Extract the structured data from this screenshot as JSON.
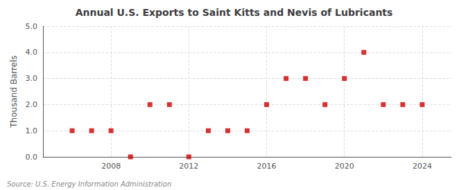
{
  "chart_data": {
    "type": "scatter",
    "title": "Annual U.S. Exports to Saint Kitts and Nevis of Lubricants",
    "ylabel": "Thousand Barrels",
    "annotation": "Source: U.S. Energy Information Administration",
    "x": [
      2006,
      2007,
      2008,
      2009,
      2010,
      2011,
      2012,
      2013,
      2014,
      2015,
      2016,
      2017,
      2018,
      2019,
      2020,
      2021,
      2022,
      2023,
      2024
    ],
    "values": [
      1,
      1,
      1,
      0,
      2,
      2,
      0,
      1,
      1,
      1,
      2,
      3,
      3,
      2,
      3,
      4,
      2,
      2,
      2
    ],
    "xlim": [
      2004.5,
      2025.5
    ],
    "xticks": [
      2008,
      2012,
      2016,
      2020,
      2024
    ],
    "ylim": [
      0,
      5.0
    ],
    "yticks": [
      {
        "value": 0.0,
        "label": "0.0"
      },
      {
        "value": 1.0,
        "label": "1.0"
      },
      {
        "value": 2.0,
        "label": "2.0"
      },
      {
        "value": 3.0,
        "label": "3.0"
      },
      {
        "value": 4.0,
        "label": "4.0"
      },
      {
        "value": 5.0,
        "label": "5.0"
      }
    ],
    "color": "#cc0000",
    "marker": "square",
    "grid": true
  }
}
